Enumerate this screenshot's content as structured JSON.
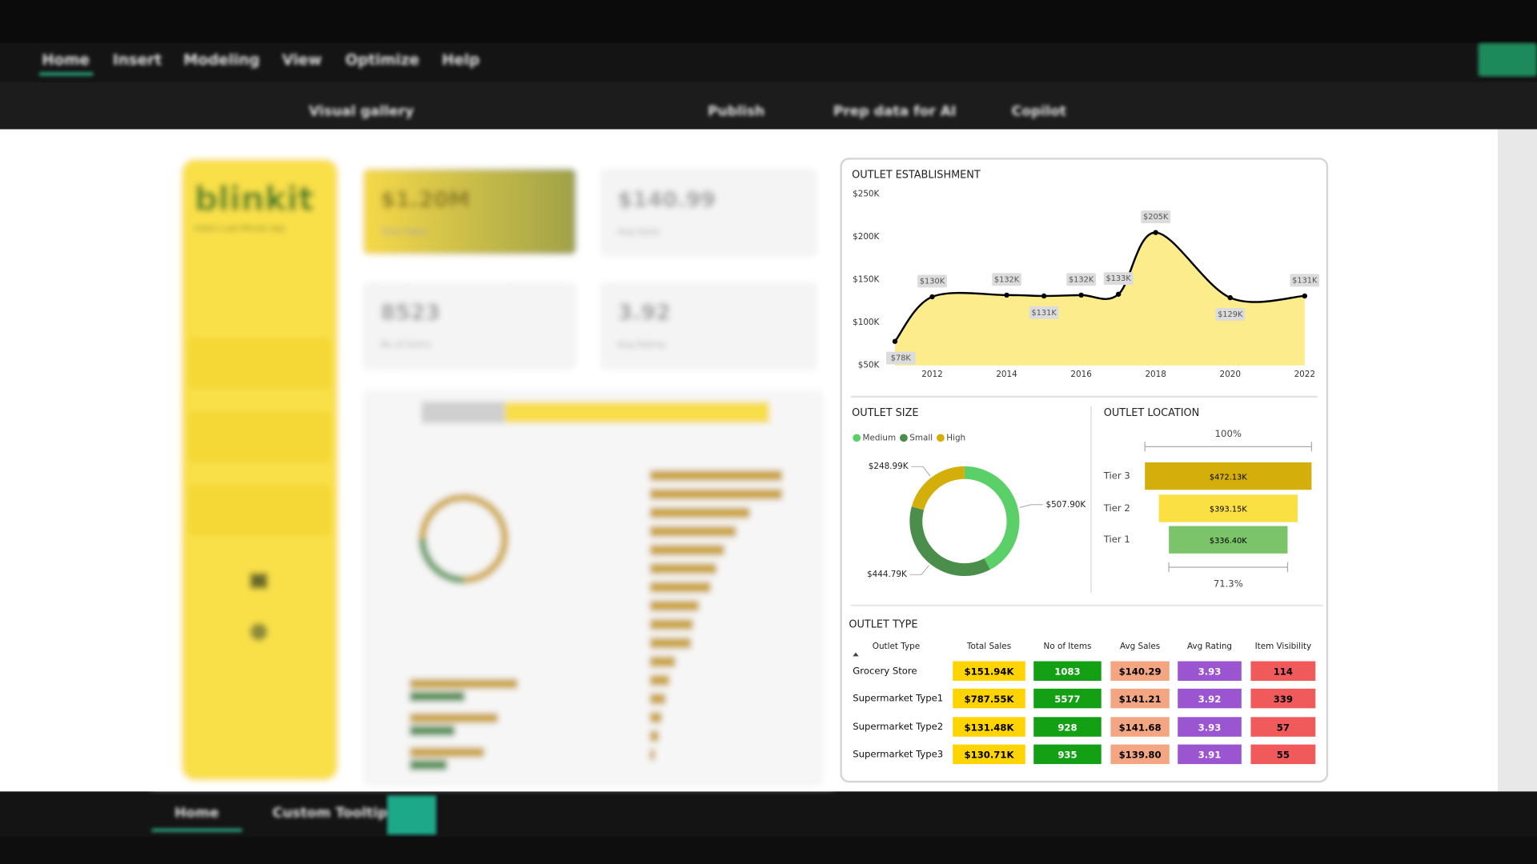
{
  "app": {
    "menu": [
      "Home",
      "Insert",
      "Modeling",
      "View",
      "Optimize",
      "Help"
    ],
    "toolbar": [
      "Visual gallery",
      "Publish",
      "Prep data for AI",
      "Copilot"
    ],
    "page_tabs": [
      "Home",
      "Custom Tooltip"
    ]
  },
  "brand": {
    "name": "blinkit",
    "tagline": "India's Last Minute App"
  },
  "kpis": [
    {
      "value": "$1.20M",
      "label": "Total Sales"
    },
    {
      "value": "$140.99",
      "label": "Avg Sales"
    },
    {
      "value": "8523",
      "label": "No of Items"
    },
    {
      "value": "3.92",
      "label": "Avg Rating"
    }
  ],
  "chart_data": [
    {
      "type": "line",
      "title": "OUTLET ESTABLISHMENT",
      "x": [
        2011,
        2012,
        2014,
        2015,
        2016,
        2017,
        2018,
        2020,
        2022
      ],
      "values": [
        78000,
        130000,
        132000,
        131000,
        132000,
        133000,
        205000,
        129000,
        131000
      ],
      "value_labels": [
        "$78K",
        "$130K",
        "$132K",
        "$131K",
        "$132K",
        "$133K",
        "$205K",
        "$129K",
        "$131K"
      ],
      "color": "#000000",
      "area_color": "#fcec8c",
      "xlim": [
        2011,
        2022
      ],
      "xticks": [
        2012,
        2014,
        2016,
        2018,
        2020,
        2022
      ],
      "ylim": [
        50000,
        250000
      ],
      "yticks": [
        {
          "value": 50000,
          "label": "$50K"
        },
        {
          "value": 100000,
          "label": "$100K"
        },
        {
          "value": 150000,
          "label": "$150K"
        },
        {
          "value": 200000,
          "label": "$200K"
        },
        {
          "value": 250000,
          "label": "$250K"
        }
      ]
    },
    {
      "type": "pie",
      "title": "OUTLET SIZE",
      "categories": [
        "Medium",
        "Small",
        "High"
      ],
      "values": [
        507900,
        444790,
        248990
      ],
      "value_labels": [
        "$507.90K",
        "$444.79K",
        "$248.99K"
      ],
      "colors": [
        "#5cd068",
        "#4b8e4b",
        "#d4ae0a"
      ],
      "legend": "top-left"
    },
    {
      "type": "funnel",
      "title": "OUTLET LOCATION",
      "categories": [
        "Tier 3",
        "Tier 2",
        "Tier 1"
      ],
      "values": [
        472130,
        393150,
        336400
      ],
      "value_labels": [
        "$472.13K",
        "$393.15K",
        "$336.40K"
      ],
      "colors": [
        "#d4ae0a",
        "#fbe043",
        "#7cc46a"
      ],
      "top_label": "100%",
      "bottom_label": "71.3%"
    }
  ],
  "outlet_type_table": {
    "title": "OUTLET TYPE",
    "columns": [
      "Outlet Type",
      "Total Sales",
      "No of Items",
      "Avg Sales",
      "Avg Rating",
      "Item Visibility"
    ],
    "column_colors": [
      null,
      "#ffd400",
      "#14a014",
      "#f4a582",
      "#9b55d0",
      "#f05a5a"
    ],
    "column_text_colors": [
      null,
      "#000000",
      "#ffffff",
      "#000000",
      "#ffffff",
      "#000000"
    ],
    "rows": [
      [
        "Grocery Store",
        "$151.94K",
        "1083",
        "$140.29",
        "3.93",
        "114"
      ],
      [
        "Supermarket Type1",
        "$787.55K",
        "5577",
        "$141.21",
        "3.92",
        "339"
      ],
      [
        "Supermarket Type2",
        "$131.48K",
        "928",
        "$141.68",
        "3.93",
        "57"
      ],
      [
        "Supermarket Type3",
        "$130.71K",
        "935",
        "$139.80",
        "3.91",
        "55"
      ]
    ]
  }
}
